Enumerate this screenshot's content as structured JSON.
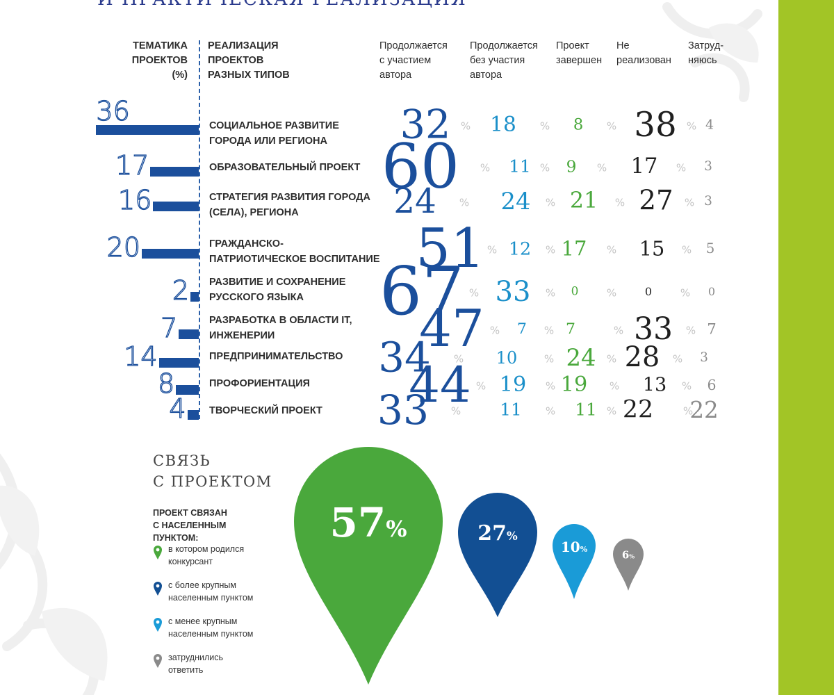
{
  "page": {
    "title": "И ПРАКТИЧЕСКАЯ РЕАЛИЗАЦИЯ",
    "accent_green": "#a2c526",
    "accent_blue": "#1b4f9c"
  },
  "headers": {
    "themes": [
      "ТЕМАТИКА",
      "ПРОЕКТОВ",
      "(%)"
    ],
    "realization": [
      "РЕАЛИЗАЦИЯ",
      "ПРОЕКТОВ",
      "РАЗНЫХ ТИПОВ"
    ],
    "columns": [
      {
        "lines": [
          "Продолжается",
          "с участием",
          "автора"
        ],
        "color": "#1b4f9c"
      },
      {
        "lines": [
          "Продолжается",
          "без участия",
          "автора"
        ],
        "color": "#1a8fc9"
      },
      {
        "lines": [
          "Проект",
          "завершен"
        ],
        "color": "#4aa83c"
      },
      {
        "lines": [
          "Не",
          "реализован"
        ],
        "color": "#2d2d2d"
      },
      {
        "lines": [
          "Затруд-",
          "няюсь"
        ],
        "color": "#8a8a8a"
      }
    ]
  },
  "chart_data": [
    {
      "type": "table",
      "rows": [
        {
          "label": [
            "СОЦИАЛЬНОЕ РАЗВИТИЕ",
            "ГОРОДА ИЛИ РЕГИОНА"
          ],
          "theme_percent": "36",
          "values": [
            "32",
            "18",
            "8",
            "38",
            "4"
          ]
        },
        {
          "label": [
            "ОБРАЗОВАТЕЛЬНЫЙ ПРОЕКТ"
          ],
          "theme_percent": "17",
          "values": [
            "60",
            "11",
            "9",
            "17",
            "3"
          ]
        },
        {
          "label": [
            "СТРАТЕГИЯ РАЗВИТИЯ ГОРОДА",
            "(СЕЛА), РЕГИОНА"
          ],
          "theme_percent": "16",
          "values": [
            "24",
            "24",
            "21",
            "27",
            "3"
          ]
        },
        {
          "label": [
            "ГРАЖДАНСКО-",
            "ПАТРИОТИЧЕСКОЕ ВОСПИТАНИЕ"
          ],
          "theme_percent": "20",
          "values": [
            "51",
            "12",
            "17",
            "15",
            "5"
          ]
        },
        {
          "label": [
            "РАЗВИТИЕ И СОХРАНЕНИЕ",
            "РУССКОГО ЯЗЫКА"
          ],
          "theme_percent": "2",
          "values": [
            "67",
            "33",
            "0",
            "0",
            "0"
          ]
        },
        {
          "label": [
            "РАЗРАБОТКА В ОБЛАСТИ IT,",
            "ИНЖЕНЕРИИ"
          ],
          "theme_percent": "7",
          "values": [
            "47",
            "7",
            "7",
            "33",
            "7"
          ]
        },
        {
          "label": [
            "ПРЕДПРИНИМАТЕЛЬСТВО"
          ],
          "theme_percent": "14",
          "values": [
            "34",
            "10",
            "24",
            "28",
            "3"
          ]
        },
        {
          "label": [
            "ПРОФОРИЕНТАЦИЯ"
          ],
          "theme_percent": "8",
          "values": [
            "44",
            "19",
            "19",
            "13",
            "6"
          ]
        },
        {
          "label": [
            "ТВОРЧЕСКИЙ ПРОЕКТ"
          ],
          "theme_percent": "4",
          "values": [
            "33",
            "11",
            "11",
            "22",
            "22"
          ]
        }
      ],
      "percent_sign": "%"
    },
    {
      "type": "pie",
      "title": [
        "СВЯЗЬ",
        "С ПРОЕКТОМ"
      ],
      "subtitle": [
        "ПРОЕКТ СВЯЗАН",
        "С НАСЕЛЕННЫМ ПУНКТОМ:"
      ],
      "values": [
        57,
        27,
        10,
        6
      ],
      "value_labels": [
        "57",
        "27",
        "10",
        "6"
      ],
      "percent_sign": "%",
      "legend": [
        {
          "lines": [
            "в котором родился",
            "конкурсант"
          ],
          "color": "#4aa83c"
        },
        {
          "lines": [
            "с более крупным",
            "населенным пунктом"
          ],
          "color": "#124f93"
        },
        {
          "lines": [
            "с менее крупным",
            "населенным пунктом"
          ],
          "color": "#1a9bd7"
        },
        {
          "lines": [
            "затруднились",
            "ответить"
          ],
          "color": "#8a8a8a"
        }
      ]
    }
  ]
}
